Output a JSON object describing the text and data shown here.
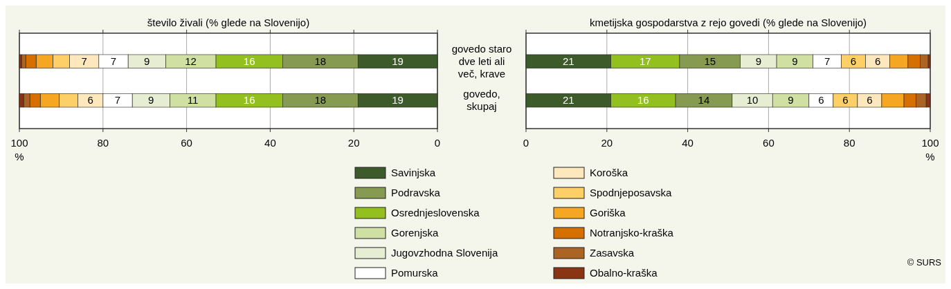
{
  "chart_data": [
    {
      "type": "bar",
      "orientation": "horizontal",
      "stacked": true,
      "title": "število živali (% glede na Slovenijo)",
      "xlabel": "%",
      "categories": [
        "govedo staro dve leti ali več, krave",
        "govedo, skupaj"
      ],
      "xlim": [
        100,
        0
      ],
      "xticks": [
        100,
        80,
        60,
        40,
        20,
        0
      ],
      "grid": "x",
      "legend": "bottom",
      "series": [
        {
          "name": "Savinjska",
          "color": "#3d5a2a",
          "values": [
            19,
            19
          ],
          "value_labels": [
            "19",
            "19"
          ]
        },
        {
          "name": "Podravska",
          "color": "#879a52",
          "values": [
            18,
            18
          ],
          "value_labels": [
            "18",
            "18"
          ]
        },
        {
          "name": "Osrednjeslovenska",
          "color": "#93c01f",
          "values": [
            16,
            16
          ],
          "value_labels": [
            "16",
            "16"
          ]
        },
        {
          "name": "Gorenjska",
          "color": "#cfe0a2",
          "values": [
            12,
            11
          ],
          "value_labels": [
            "12",
            "11"
          ]
        },
        {
          "name": "Jugovzhodna Slovenija",
          "color": "#e6edd2",
          "values": [
            9,
            9
          ],
          "value_labels": [
            "9",
            "9"
          ]
        },
        {
          "name": "Pomurska",
          "color": "#ffffff",
          "values": [
            7,
            7
          ],
          "value_labels": [
            "7",
            "7"
          ]
        },
        {
          "name": "Koroška",
          "color": "#fde8bd",
          "values": [
            7,
            6
          ],
          "value_labels": [
            "7",
            "6"
          ]
        },
        {
          "name": "Spodnjeposavska",
          "color": "#fdd067",
          "values": [
            4,
            4.5
          ],
          "value_labels": [
            null,
            null
          ]
        },
        {
          "name": "Goriška",
          "color": "#f5a623",
          "values": [
            4,
            4.5
          ],
          "value_labels": [
            null,
            null
          ]
        },
        {
          "name": "Notranjsko-kraška",
          "color": "#d46f00",
          "values": [
            2.5,
            2.5
          ],
          "value_labels": [
            null,
            null
          ]
        },
        {
          "name": "Zasavska",
          "color": "#ab6424",
          "values": [
            1,
            1.5
          ],
          "value_labels": [
            null,
            null
          ]
        },
        {
          "name": "Obalno-kraška",
          "color": "#8b3414",
          "values": [
            0.5,
            1
          ],
          "value_labels": [
            null,
            null
          ]
        }
      ]
    },
    {
      "type": "bar",
      "orientation": "horizontal",
      "stacked": true,
      "title": "kmetijska gospodarstva z rejo govedi (% glede na Slovenijo)",
      "xlabel": "%",
      "categories": [
        null,
        null
      ],
      "xlim": [
        0,
        100
      ],
      "xticks": [
        0,
        20,
        40,
        60,
        80,
        100
      ],
      "grid": "x",
      "annotations": [
        "© SURS"
      ],
      "series": [
        {
          "color": "#3d5a2a",
          "values": [
            21,
            21
          ],
          "value_labels": [
            "21",
            "21"
          ]
        },
        {
          "color": "#93c01f",
          "values": [
            17,
            16
          ],
          "value_labels": [
            "17",
            "16"
          ]
        },
        {
          "color": "#879a52",
          "values": [
            15,
            14
          ],
          "value_labels": [
            "15",
            "14"
          ]
        },
        {
          "color": "#e6edd2",
          "values": [
            9,
            10
          ],
          "value_labels": [
            "9",
            "10"
          ]
        },
        {
          "color": "#cfe0a2",
          "values": [
            9,
            9
          ],
          "value_labels": [
            "9",
            "9"
          ]
        },
        {
          "color": "#ffffff",
          "values": [
            7,
            6
          ],
          "value_labels": [
            "7",
            "6"
          ]
        },
        {
          "color": "#fdd067",
          "values": [
            6,
            6
          ],
          "value_labels": [
            "6",
            "6"
          ]
        },
        {
          "color": "#fde8bd",
          "values": [
            6,
            6
          ],
          "value_labels": [
            "6",
            "6"
          ]
        },
        {
          "color": "#f5a623",
          "values": [
            4.5,
            5.5
          ],
          "value_labels": [
            null,
            null
          ]
        },
        {
          "color": "#d46f00",
          "values": [
            3,
            3
          ],
          "value_labels": [
            null,
            null
          ]
        },
        {
          "color": "#ab6424",
          "values": [
            2,
            2.5
          ],
          "value_labels": [
            null,
            null
          ]
        },
        {
          "color": "#8b3414",
          "values": [
            0.5,
            1
          ],
          "value_labels": [
            null,
            null
          ]
        }
      ]
    }
  ]
}
